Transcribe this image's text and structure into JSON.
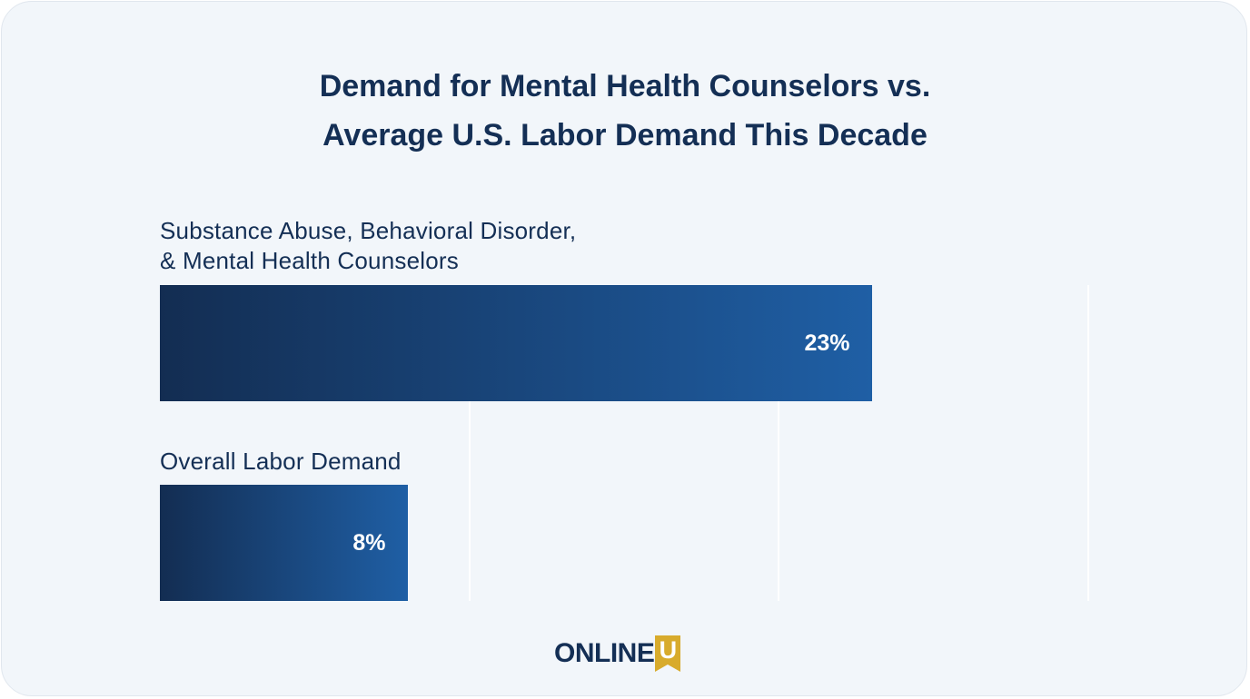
{
  "chart_data": {
    "type": "bar",
    "orientation": "horizontal",
    "title": [
      "Demand for Mental Health Counselors vs.",
      "Average U.S. Labor Demand This Decade"
    ],
    "categories": [
      [
        "Substance Abuse, Behavioral Disorder,",
        "& Mental Health Counselors"
      ],
      [
        "Overall Labor Demand"
      ]
    ],
    "values": [
      23,
      8
    ],
    "value_labels": [
      "23%",
      "8%"
    ],
    "unit": "%",
    "xlim": [
      0,
      30
    ],
    "gridlines": [
      10,
      20,
      30
    ],
    "grid": true,
    "colors": {
      "bar_start": "#132d52",
      "bar_end": "#1f5fa5",
      "text": "#142f55",
      "background": "#f2f6fa"
    }
  },
  "logo": {
    "text": "ONLINE",
    "u_letter": "U",
    "u_color": "#d8ab2c"
  }
}
